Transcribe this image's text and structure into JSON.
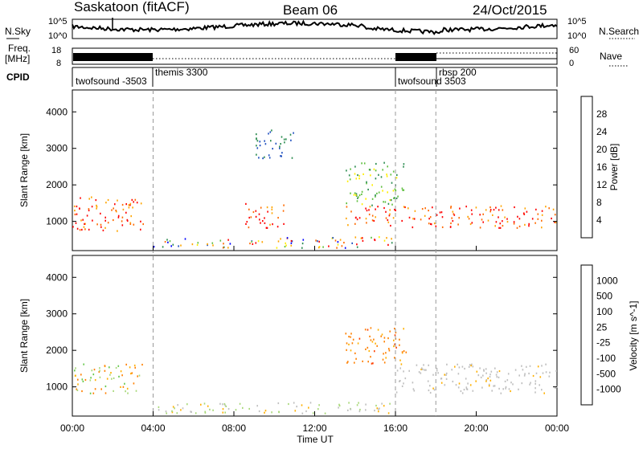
{
  "header": {
    "station": "Saskatoon (fitACF)",
    "beam": "Beam 06",
    "date": "24/Oct/2015"
  },
  "noise_panel": {
    "left_label": "N.Sky",
    "right_label": "N.Search",
    "left_top": "10^5",
    "left_bottom": "10^0",
    "right_top": "10^5",
    "right_bottom": "10^0"
  },
  "freq_panel": {
    "left_label_line1": "Freq.",
    "left_label_line2": "[MHz]",
    "right_label": "Nave",
    "left_top": "18",
    "left_bottom": "8",
    "right_top": "60",
    "right_bottom": "0"
  },
  "cpid_panel": {
    "label": "CPID",
    "modes": [
      "twofsound -3503",
      "themis 3300",
      "twofsound 3503",
      "rbsp 200"
    ]
  },
  "chart_data": [
    {
      "type": "heatmap",
      "name_hint": "power",
      "ylabel": "Slant Range [km]",
      "xlabel": "Time UT",
      "x_ticks": [
        "00:00",
        "04:00",
        "08:00",
        "12:00",
        "16:00",
        "20:00",
        "00:00"
      ],
      "y_ticks": [
        "1000",
        "2000",
        "3000",
        "4000"
      ],
      "ylim": [
        200,
        4600
      ],
      "xlim_hours": [
        0,
        24
      ],
      "mode_change_hours": [
        4,
        16,
        18
      ],
      "colorbar": {
        "label": "Power [dB]",
        "ticks": [
          "28",
          "24",
          "20",
          "16",
          "12",
          "8",
          "4"
        ],
        "colors": [
          "#0000ff",
          "#1f4fbf",
          "#2b8c4f",
          "#5fbf3f",
          "#ffee00",
          "#ffa500",
          "#ff6a00",
          "#ff0000"
        ]
      },
      "features": [
        {
          "t0": 0.0,
          "t1": 3.5,
          "r0": 700,
          "r1": 1700,
          "level": "high"
        },
        {
          "t0": 4.0,
          "t1": 16.0,
          "r0": 250,
          "r1": 550,
          "level": "mixed"
        },
        {
          "t0": 8.5,
          "t1": 10.5,
          "r0": 800,
          "r1": 1500,
          "level": "high"
        },
        {
          "t0": 9.0,
          "t1": 11.0,
          "r0": 2700,
          "r1": 3500,
          "level": "low"
        },
        {
          "t0": 13.5,
          "t1": 24.0,
          "r0": 800,
          "r1": 1400,
          "level": "high"
        },
        {
          "t0": 13.5,
          "t1": 16.5,
          "r0": 1400,
          "r1": 2600,
          "level": "mid"
        }
      ]
    },
    {
      "type": "heatmap",
      "name_hint": "velocity",
      "ylabel": "Slant Range [km]",
      "xlabel": "Time UT",
      "x_ticks": [
        "00:00",
        "04:00",
        "08:00",
        "12:00",
        "16:00",
        "20:00",
        "00:00"
      ],
      "y_ticks": [
        "1000",
        "2000",
        "3000",
        "4000"
      ],
      "ylim": [
        200,
        4600
      ],
      "xlim_hours": [
        0,
        24
      ],
      "colorbar": {
        "label": "Velocity [m s^-1]",
        "ticks": [
          "1000",
          "500",
          "100",
          "25",
          "-25",
          "-100",
          "-500",
          "-1000"
        ],
        "colors": [
          "#2a55b5",
          "#2e8c4e",
          "#64c84a",
          "#a8d878",
          "#bfbfbf",
          "#ffb000",
          "#ff8000",
          "#ff4000",
          "#ff0000"
        ]
      },
      "features": [
        {
          "t0": 0.0,
          "t1": 3.5,
          "r0": 800,
          "r1": 1600,
          "v": "mixed-green-orange"
        },
        {
          "t0": 4.0,
          "t1": 16.0,
          "r0": 250,
          "r1": 550,
          "v": "green-ground"
        },
        {
          "t0": 16.0,
          "t1": 24.0,
          "r0": 800,
          "r1": 1600,
          "v": "grey-near-zero"
        },
        {
          "t0": 13.5,
          "t1": 16.5,
          "r0": 1600,
          "r1": 2600,
          "v": "orange"
        }
      ]
    }
  ]
}
